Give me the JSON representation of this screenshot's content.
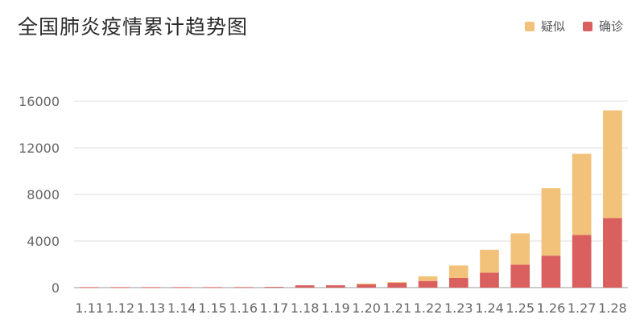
{
  "chart_data": {
    "type": "bar",
    "stacked": true,
    "title": "全国肺炎疫情累计趋势图",
    "categories": [
      "1.11",
      "1.12",
      "1.13",
      "1.14",
      "1.15",
      "1.16",
      "1.17",
      "1.18",
      "1.19",
      "1.20",
      "1.21",
      "1.22",
      "1.23",
      "1.24",
      "1.25",
      "1.26",
      "1.27",
      "1.28"
    ],
    "series": [
      {
        "name": "确诊",
        "color": "#d9605f",
        "values": [
          41,
          41,
          41,
          41,
          41,
          45,
          62,
          198,
          201,
          291,
          440,
          571,
          830,
          1287,
          1975,
          2744,
          4515,
          5974
        ]
      },
      {
        "name": "疑似",
        "color": "#f2c27a",
        "values": [
          0,
          0,
          0,
          0,
          0,
          0,
          0,
          0,
          0,
          54,
          37,
          393,
          1072,
          1965,
          2684,
          5794,
          6973,
          9239
        ]
      }
    ],
    "legend_order": [
      "疑似",
      "确诊"
    ],
    "yticks": [
      0,
      4000,
      8000,
      12000,
      16000
    ],
    "ylim": [
      0,
      16000
    ],
    "legend_position": "top-right",
    "grid": true
  }
}
